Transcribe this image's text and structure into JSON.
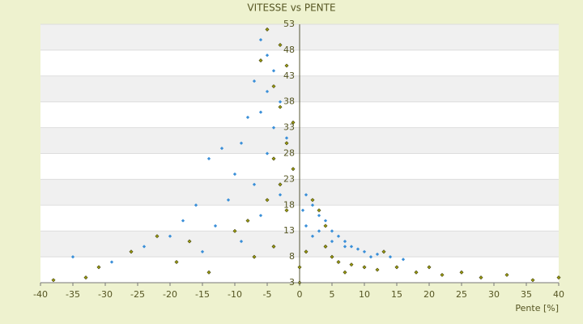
{
  "chart_data": {
    "type": "scatter",
    "title": "VITESSE vs PENTE",
    "x_label": "Pente [%]",
    "xlim": [
      -40,
      40
    ],
    "xticks": [
      -40,
      -35,
      -30,
      -25,
      -20,
      -15,
      -10,
      -5,
      0,
      5,
      10,
      15,
      20,
      25,
      30,
      35,
      40
    ],
    "ylim": [
      3,
      53
    ],
    "yticks": [
      3,
      8,
      13,
      18,
      23,
      28,
      33,
      38,
      43,
      48,
      53
    ],
    "grid": true,
    "series": [
      {
        "color": "#3a8fd8",
        "x": [
          -6,
          -5,
          -4,
          -7,
          -5,
          -3,
          -6,
          -8,
          -4,
          -2,
          -9,
          -5,
          -12,
          -14,
          -10,
          -7,
          -3,
          -16,
          -18,
          -13,
          -20,
          -24,
          -29,
          -35,
          -15,
          -9,
          -6,
          -11,
          1,
          2,
          3,
          4,
          5,
          6,
          7,
          8,
          9,
          10,
          12,
          14,
          16,
          3,
          5,
          7,
          11,
          1,
          2,
          0.5
        ],
        "values": [
          50,
          47,
          44,
          42,
          40,
          38,
          36,
          35,
          33,
          31,
          30,
          28,
          29,
          27,
          24,
          22,
          20,
          18,
          15,
          14,
          12,
          10,
          7,
          8,
          9,
          11,
          16,
          19,
          20,
          18,
          16,
          15,
          13,
          12,
          11,
          10,
          9.5,
          9,
          8.5,
          8,
          7.5,
          13,
          11,
          10,
          8,
          14,
          12,
          17
        ]
      },
      {
        "color": "#9a9a10",
        "x": [
          -5,
          -3,
          -6,
          -2,
          -4,
          -3,
          -1,
          -2,
          -4,
          -1,
          -3,
          -5,
          -2,
          -8,
          -10,
          -17,
          -22,
          -26,
          -31,
          -38,
          -33,
          -19,
          -14,
          -7,
          -4,
          0,
          0,
          1,
          2,
          3,
          4,
          5,
          6,
          8,
          10,
          12,
          15,
          18,
          20,
          22,
          25,
          28,
          32,
          36,
          40,
          13,
          4,
          7
        ],
        "values": [
          52,
          49,
          46,
          45,
          41,
          37,
          34,
          30,
          27,
          25,
          22,
          19,
          17,
          15,
          13,
          11,
          12,
          9,
          6,
          3.5,
          4,
          7,
          5,
          8,
          10,
          3,
          6,
          9,
          19,
          17,
          14,
          8,
          7,
          6.5,
          6,
          5.5,
          6,
          5,
          6,
          4.5,
          5,
          4,
          4.5,
          3.5,
          4,
          9,
          10,
          5
        ]
      }
    ]
  }
}
